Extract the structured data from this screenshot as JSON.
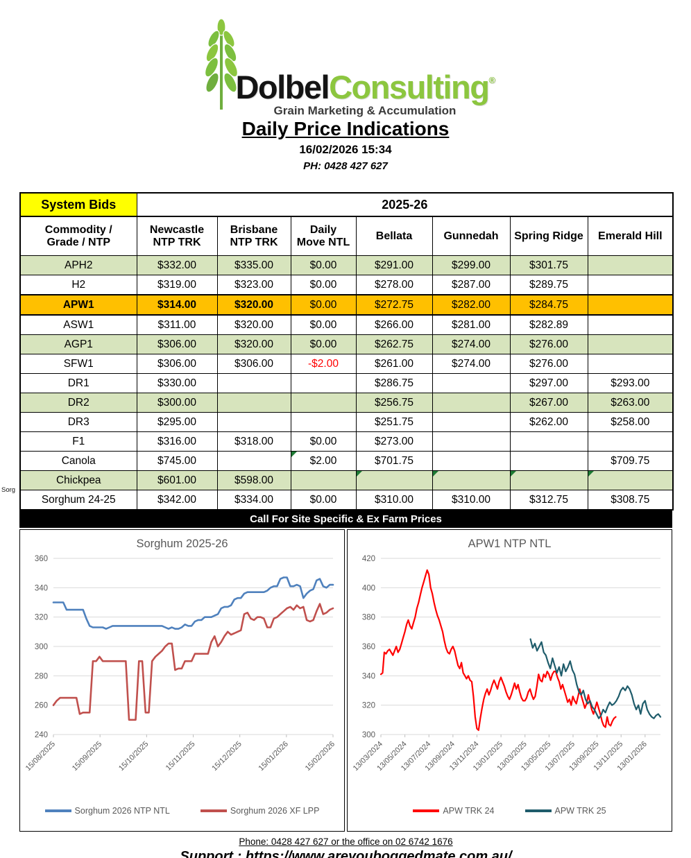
{
  "header": {
    "brand_black": "Dolbel",
    "brand_green": "Consulting",
    "registered": "®",
    "tagline": "Grain Marketing & Accumulation",
    "title": "Daily Price Indications",
    "datetime": "16/02/2026 15:34",
    "phone_line": "PH: 0428 427 627"
  },
  "margin_text": "Sorg",
  "table": {
    "corner_label": "System Bids",
    "season_label": "2025-26",
    "columns": [
      "Commodity /\nGrade / NTP",
      "Newcastle\nNTP TRK",
      "Brisbane\nNTP TRK",
      "Daily\nMove NTL",
      "Bellata",
      "Gunnedah",
      "Spring Ridge",
      "Emerald Hill"
    ],
    "rows": [
      {
        "label": "APH2",
        "bg": "green",
        "cells": [
          "$332.00",
          "$335.00",
          "$0.00",
          "$291.00",
          "$299.00",
          "$301.75",
          ""
        ]
      },
      {
        "label": "H2",
        "bg": "white",
        "cells": [
          "$319.00",
          "$323.00",
          "$0.00",
          "$278.00",
          "$287.00",
          "$289.75",
          ""
        ]
      },
      {
        "label": "APW1",
        "bg": "orange",
        "emphasis": true,
        "cells": [
          "$314.00",
          "$320.00",
          "$0.00",
          "$272.75",
          "$282.00",
          "$284.75",
          ""
        ]
      },
      {
        "label": "ASW1",
        "bg": "white",
        "cells": [
          "$311.00",
          "$320.00",
          "$0.00",
          "$266.00",
          "$281.00",
          "$282.89",
          ""
        ]
      },
      {
        "label": "AGP1",
        "bg": "green",
        "cells": [
          "$306.00",
          "$320.00",
          "$0.00",
          "$262.75",
          "$274.00",
          "$276.00",
          ""
        ]
      },
      {
        "label": "SFW1",
        "bg": "white",
        "red_cells": [
          2
        ],
        "cells": [
          "$306.00",
          "$306.00",
          "-$2.00",
          "$261.00",
          "$274.00",
          "$276.00",
          ""
        ]
      },
      {
        "label": "DR1",
        "bg": "white",
        "cells": [
          "$330.00",
          "",
          "",
          "$286.75",
          "",
          "$297.00",
          "$293.00"
        ]
      },
      {
        "label": "DR2",
        "bg": "green",
        "cells": [
          "$300.00",
          "",
          "",
          "$256.75",
          "",
          "$267.00",
          "$263.00"
        ]
      },
      {
        "label": "DR3",
        "bg": "white",
        "cells": [
          "$295.00",
          "",
          "",
          "$251.75",
          "",
          "$262.00",
          "$258.00"
        ]
      },
      {
        "label": "F1",
        "bg": "white",
        "cells": [
          "$316.00",
          "$318.00",
          "$0.00",
          "$273.00",
          "",
          "",
          ""
        ]
      },
      {
        "label": "Canola",
        "bg": "white",
        "comment_markers": [
          2
        ],
        "cells": [
          "$745.00",
          "",
          "$2.00",
          "$701.75",
          "",
          "",
          "$709.75"
        ]
      },
      {
        "label": "Chickpea",
        "bg": "green",
        "comment_markers": [
          3,
          4,
          5,
          6
        ],
        "cells": [
          "$601.00",
          "$598.00",
          "",
          "",
          "",
          "",
          ""
        ]
      },
      {
        "label": "Sorghum 24-25",
        "bg": "white",
        "cells": [
          "$342.00",
          "$334.00",
          "$0.00",
          "$310.00",
          "$310.00",
          "$312.75",
          "$308.75"
        ]
      }
    ],
    "banner": "Call For Site Specific & Ex Farm Prices"
  },
  "chart_data": [
    {
      "id": "sorghum-chart",
      "type": "line",
      "title": "Sorghum 2025-26",
      "ylim": [
        240,
        360
      ],
      "yticks": [
        240,
        260,
        280,
        300,
        320,
        340,
        360
      ],
      "xticklabels": [
        "15/08/2025",
        "15/09/2025",
        "15/10/2025",
        "15/11/2025",
        "15/12/2025",
        "15/01/2026",
        "15/02/2026"
      ],
      "xtick_end_frac": 1.0,
      "grid": true,
      "legend_position": "bottom",
      "series": [
        {
          "name": "Sorghum 2026 NTP NTL",
          "color": "#4F81BD",
          "width": 2.6,
          "x_start": 0.0,
          "x_end": 1.0,
          "values": [
            330,
            330,
            330,
            330,
            325,
            325,
            325,
            325,
            325,
            325,
            319,
            314,
            313,
            313,
            313,
            313,
            312,
            313,
            314,
            314,
            314,
            314,
            314,
            314,
            314,
            314,
            314,
            314,
            314,
            314,
            314,
            314,
            314,
            314,
            313,
            312,
            313,
            312,
            312,
            313,
            315,
            314,
            314,
            317,
            318,
            318,
            320,
            320,
            320,
            321,
            322,
            326,
            327,
            327,
            328,
            332,
            333,
            333,
            336,
            337,
            337,
            337,
            337,
            337,
            337,
            338,
            340,
            341,
            341,
            346,
            347,
            347,
            341,
            341,
            342,
            341,
            333,
            336,
            338,
            339,
            345,
            346,
            341,
            340,
            342,
            342
          ]
        },
        {
          "name": "Sorghum 2026 XF LPP",
          "color": "#C0504D",
          "width": 2.6,
          "x_start": 0.0,
          "x_end": 1.0,
          "values": [
            260,
            263,
            265,
            265,
            265,
            265,
            265,
            265,
            254,
            255,
            255,
            255,
            290,
            290,
            293,
            290,
            290,
            290,
            290,
            290,
            290,
            290,
            290,
            250,
            250,
            250,
            290,
            290,
            255,
            255,
            290,
            293,
            295,
            297,
            300,
            302,
            302,
            284,
            285,
            285,
            290,
            290,
            290,
            295,
            295,
            295,
            295,
            295,
            303,
            307,
            300,
            303,
            307,
            310,
            308,
            309,
            310,
            311,
            322,
            323,
            319,
            318,
            320,
            320,
            319,
            313,
            313,
            319,
            320,
            322,
            324,
            326,
            327,
            325,
            328,
            326,
            327,
            318,
            317,
            318,
            324,
            329,
            322,
            323,
            325,
            326
          ]
        }
      ]
    },
    {
      "id": "apw1-chart",
      "type": "line",
      "title": "APW1 NTP NTL",
      "ylim": [
        300,
        420
      ],
      "yticks": [
        300,
        320,
        340,
        360,
        380,
        400,
        420
      ],
      "xticklabels": [
        "13/03/2024",
        "13/05/2024",
        "13/07/2024",
        "13/09/2024",
        "13/11/2024",
        "13/01/2025",
        "13/03/2025",
        "13/05/2025",
        "13/07/2025",
        "13/09/2025",
        "13/11/2025",
        "13/01/2026"
      ],
      "xtick_end_frac": 0.945,
      "grid": true,
      "legend_position": "bottom",
      "series": [
        {
          "name": "APW TRK 24",
          "color": "#FF0000",
          "width": 2.2,
          "x_start": 0.0,
          "x_end": 0.84,
          "values": [
            341,
            342,
            356,
            355,
            357,
            358,
            356,
            354,
            357,
            360,
            356,
            358,
            362,
            366,
            370,
            375,
            378,
            374,
            372,
            376,
            380,
            386,
            390,
            395,
            400,
            404,
            408,
            412,
            409,
            400,
            396,
            390,
            385,
            381,
            378,
            374,
            370,
            364,
            359,
            356,
            355,
            358,
            360,
            357,
            352,
            347,
            345,
            349,
            342,
            340,
            338,
            340,
            337,
            336,
            326,
            312,
            304,
            303,
            311,
            318,
            324,
            328,
            331,
            327,
            330,
            334,
            337,
            334,
            331,
            336,
            339,
            336,
            333,
            329,
            326,
            324,
            327,
            331,
            335,
            331,
            334,
            329,
            325,
            323,
            323,
            325,
            329,
            331,
            327,
            324,
            326,
            333,
            341,
            337,
            336,
            341,
            339,
            343,
            341,
            337,
            341,
            343,
            343,
            339,
            336,
            331,
            334,
            330,
            326,
            322,
            324,
            320,
            326,
            323,
            321,
            326,
            331,
            326,
            322,
            318,
            321,
            327,
            322,
            317,
            314,
            318,
            322,
            318,
            314,
            309,
            306,
            305,
            312,
            307,
            306,
            309,
            311,
            312
          ]
        },
        {
          "name": "APW TRK 25",
          "color": "#1F5C6B",
          "width": 2.2,
          "x_start": 0.535,
          "x_end": 1.0,
          "values": [
            365,
            359,
            362,
            357,
            360,
            363,
            356,
            354,
            349,
            345,
            352,
            347,
            342,
            346,
            340,
            348,
            343,
            346,
            350,
            344,
            341,
            334,
            329,
            327,
            330,
            324,
            321,
            323,
            319,
            317,
            314,
            311,
            313,
            317,
            315,
            319,
            322,
            320,
            321,
            323,
            326,
            330,
            332,
            330,
            333,
            331,
            327,
            321,
            317,
            320,
            314,
            321,
            323,
            317,
            314,
            312,
            311,
            313,
            314,
            312
          ]
        }
      ]
    }
  ],
  "footer": {
    "phone": "Phone: 0428 427 627 or the office on 02 6742 1676",
    "support": "Support : https://www.areyouboggedmate.com.au/"
  },
  "colors": {
    "row_green": "#D7E4BD",
    "row_orange": "#FFC000",
    "corner_yellow": "#FFFF00",
    "negative_red": "#FF0000",
    "brand_green": "#8CC63F",
    "comment_marker_green": "#1E7B34",
    "chart_gridline": "#D9D9D9",
    "chart_label": "#595959"
  }
}
